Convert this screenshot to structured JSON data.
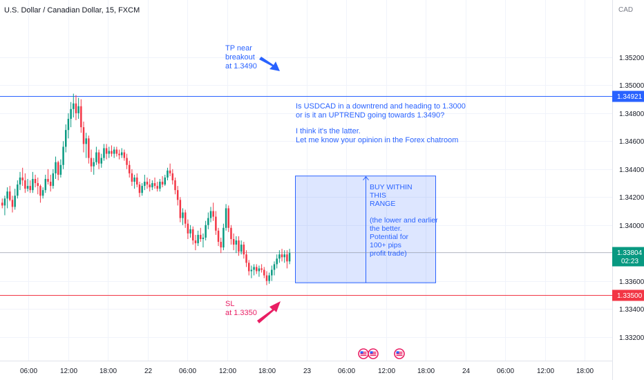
{
  "chart_data": {
    "type": "candlestick",
    "title": "U.S. Dollar / Canadian Dollar, 15, FXCM",
    "currency_label": "CAD",
    "grid": true,
    "y_range": [
      1.3303,
      1.3561
    ],
    "y_ticks": [
      "1.35200",
      "1.35000",
      "1.34800",
      "1.34600",
      "1.34400",
      "1.34200",
      "1.34000",
      "1.33800",
      "1.33600",
      "1.33400",
      "1.33200"
    ],
    "x_ticks": [
      "06:00",
      "12:00",
      "18:00",
      "22",
      "06:00",
      "12:00",
      "18:00",
      "23",
      "06:00",
      "12:00",
      "18:00",
      "24",
      "06:00",
      "12:00",
      "18:00"
    ],
    "price_line": {
      "value": 1.33804,
      "label": "1.33804",
      "countdown": "02:23",
      "color": "#089981"
    },
    "horizontal_lines": [
      {
        "name": "tp-line",
        "value": 1.34921,
        "label": "1.34921",
        "color": "#2962ff"
      },
      {
        "name": "sl-line",
        "value": 1.335,
        "label": "1.33500",
        "color": "#f23645"
      }
    ],
    "range_box": {
      "from": 1.33587,
      "to": 1.34351,
      "color": "#2962ff"
    },
    "annotations": {
      "tp": [
        "TP near",
        "breakout",
        "at 1.3490"
      ],
      "sl": [
        "SL",
        "at 1.3350"
      ],
      "question": [
        "Is USDCAD in a downtrend and heading to 1.3000",
        "or is it an UPTREND going towards 1.3490?",
        "",
        "I think it's the latter.",
        "Let me know your opinion in the Forex chatroom"
      ],
      "box": [
        "BUY WITHIN",
        "THIS",
        "RANGE",
        "",
        "(the lower and earlier",
        "the better.",
        "Potential for",
        "100+ pips",
        "profit trade)"
      ]
    },
    "candles": [
      {
        "o": 1.3416,
        "h": 1.3419,
        "l": 1.3412,
        "c": 1.3414
      },
      {
        "o": 1.3414,
        "h": 1.3421,
        "l": 1.3407,
        "c": 1.3419
      },
      {
        "o": 1.3419,
        "h": 1.3427,
        "l": 1.3412,
        "c": 1.3424
      },
      {
        "o": 1.3424,
        "h": 1.3428,
        "l": 1.3417,
        "c": 1.3418
      },
      {
        "o": 1.3418,
        "h": 1.3421,
        "l": 1.3409,
        "c": 1.3413
      },
      {
        "o": 1.3413,
        "h": 1.3426,
        "l": 1.3411,
        "c": 1.3421
      },
      {
        "o": 1.3421,
        "h": 1.3432,
        "l": 1.3419,
        "c": 1.3429
      },
      {
        "o": 1.3429,
        "h": 1.3438,
        "l": 1.3425,
        "c": 1.3434
      },
      {
        "o": 1.3434,
        "h": 1.3441,
        "l": 1.3428,
        "c": 1.3432
      },
      {
        "o": 1.3432,
        "h": 1.3437,
        "l": 1.3423,
        "c": 1.3426
      },
      {
        "o": 1.3426,
        "h": 1.3433,
        "l": 1.3424,
        "c": 1.3428
      },
      {
        "o": 1.3428,
        "h": 1.3432,
        "l": 1.3423,
        "c": 1.3425
      },
      {
        "o": 1.3425,
        "h": 1.3438,
        "l": 1.3423,
        "c": 1.3433
      },
      {
        "o": 1.3433,
        "h": 1.3436,
        "l": 1.3427,
        "c": 1.343
      },
      {
        "o": 1.343,
        "h": 1.3434,
        "l": 1.3422,
        "c": 1.3428
      },
      {
        "o": 1.3428,
        "h": 1.3429,
        "l": 1.3416,
        "c": 1.3421
      },
      {
        "o": 1.3421,
        "h": 1.3427,
        "l": 1.3419,
        "c": 1.3425
      },
      {
        "o": 1.3425,
        "h": 1.3436,
        "l": 1.3423,
        "c": 1.3433
      },
      {
        "o": 1.3433,
        "h": 1.344,
        "l": 1.3429,
        "c": 1.3431
      },
      {
        "o": 1.3431,
        "h": 1.3436,
        "l": 1.3424,
        "c": 1.3428
      },
      {
        "o": 1.3428,
        "h": 1.344,
        "l": 1.3426,
        "c": 1.3437
      },
      {
        "o": 1.3437,
        "h": 1.3449,
        "l": 1.3433,
        "c": 1.3445
      },
      {
        "o": 1.3445,
        "h": 1.3446,
        "l": 1.3432,
        "c": 1.3436
      },
      {
        "o": 1.3436,
        "h": 1.3447,
        "l": 1.3434,
        "c": 1.3443
      },
      {
        "o": 1.3443,
        "h": 1.346,
        "l": 1.344,
        "c": 1.3456
      },
      {
        "o": 1.3456,
        "h": 1.3472,
        "l": 1.3452,
        "c": 1.3468
      },
      {
        "o": 1.3468,
        "h": 1.348,
        "l": 1.3462,
        "c": 1.3476
      },
      {
        "o": 1.3476,
        "h": 1.3488,
        "l": 1.347,
        "c": 1.3483
      },
      {
        "o": 1.3483,
        "h": 1.3494,
        "l": 1.3477,
        "c": 1.3487
      },
      {
        "o": 1.3487,
        "h": 1.3493,
        "l": 1.3475,
        "c": 1.348
      },
      {
        "o": 1.348,
        "h": 1.3491,
        "l": 1.3476,
        "c": 1.3485
      },
      {
        "o": 1.3485,
        "h": 1.349,
        "l": 1.3466,
        "c": 1.347
      },
      {
        "o": 1.347,
        "h": 1.3474,
        "l": 1.3452,
        "c": 1.3458
      },
      {
        "o": 1.3458,
        "h": 1.3466,
        "l": 1.3448,
        "c": 1.3462
      },
      {
        "o": 1.3462,
        "h": 1.3464,
        "l": 1.3444,
        "c": 1.3448
      },
      {
        "o": 1.3448,
        "h": 1.3454,
        "l": 1.3438,
        "c": 1.3442
      },
      {
        "o": 1.3442,
        "h": 1.3448,
        "l": 1.3436,
        "c": 1.3445
      },
      {
        "o": 1.3445,
        "h": 1.3456,
        "l": 1.3443,
        "c": 1.3452
      },
      {
        "o": 1.3452,
        "h": 1.3454,
        "l": 1.344,
        "c": 1.3444
      },
      {
        "o": 1.3444,
        "h": 1.3451,
        "l": 1.3441,
        "c": 1.3448
      },
      {
        "o": 1.3448,
        "h": 1.3458,
        "l": 1.3446,
        "c": 1.3455
      },
      {
        "o": 1.3455,
        "h": 1.3458,
        "l": 1.3447,
        "c": 1.3451
      },
      {
        "o": 1.3451,
        "h": 1.3456,
        "l": 1.3448,
        "c": 1.3453
      },
      {
        "o": 1.3453,
        "h": 1.3457,
        "l": 1.3449,
        "c": 1.3451
      },
      {
        "o": 1.3451,
        "h": 1.3456,
        "l": 1.3448,
        "c": 1.3454
      },
      {
        "o": 1.3454,
        "h": 1.3456,
        "l": 1.3449,
        "c": 1.3451
      },
      {
        "o": 1.3451,
        "h": 1.3454,
        "l": 1.3447,
        "c": 1.345
      },
      {
        "o": 1.345,
        "h": 1.3455,
        "l": 1.3448,
        "c": 1.3452
      },
      {
        "o": 1.3452,
        "h": 1.3454,
        "l": 1.3446,
        "c": 1.3448
      },
      {
        "o": 1.3448,
        "h": 1.3451,
        "l": 1.344,
        "c": 1.3443
      },
      {
        "o": 1.3443,
        "h": 1.3446,
        "l": 1.3434,
        "c": 1.3437
      },
      {
        "o": 1.3437,
        "h": 1.344,
        "l": 1.3428,
        "c": 1.3431
      },
      {
        "o": 1.3431,
        "h": 1.3436,
        "l": 1.3426,
        "c": 1.3434
      },
      {
        "o": 1.3434,
        "h": 1.3437,
        "l": 1.3427,
        "c": 1.3429
      },
      {
        "o": 1.3429,
        "h": 1.3431,
        "l": 1.342,
        "c": 1.3423
      },
      {
        "o": 1.3423,
        "h": 1.343,
        "l": 1.3421,
        "c": 1.3428
      },
      {
        "o": 1.3428,
        "h": 1.3436,
        "l": 1.3425,
        "c": 1.3431
      },
      {
        "o": 1.3431,
        "h": 1.3434,
        "l": 1.3426,
        "c": 1.3429
      },
      {
        "o": 1.3429,
        "h": 1.3433,
        "l": 1.3424,
        "c": 1.3427
      },
      {
        "o": 1.3427,
        "h": 1.3432,
        "l": 1.3425,
        "c": 1.343
      },
      {
        "o": 1.343,
        "h": 1.3434,
        "l": 1.3426,
        "c": 1.3428
      },
      {
        "o": 1.3428,
        "h": 1.3431,
        "l": 1.3424,
        "c": 1.3426
      },
      {
        "o": 1.3426,
        "h": 1.3433,
        "l": 1.3424,
        "c": 1.3431
      },
      {
        "o": 1.3431,
        "h": 1.3435,
        "l": 1.3427,
        "c": 1.3429
      },
      {
        "o": 1.3429,
        "h": 1.3436,
        "l": 1.3428,
        "c": 1.3434
      },
      {
        "o": 1.3434,
        "h": 1.3441,
        "l": 1.3432,
        "c": 1.3439
      },
      {
        "o": 1.3439,
        "h": 1.3444,
        "l": 1.3435,
        "c": 1.3437
      },
      {
        "o": 1.3437,
        "h": 1.344,
        "l": 1.3429,
        "c": 1.3432
      },
      {
        "o": 1.3432,
        "h": 1.3434,
        "l": 1.3422,
        "c": 1.3425
      },
      {
        "o": 1.3425,
        "h": 1.3428,
        "l": 1.3414,
        "c": 1.3418
      },
      {
        "o": 1.3418,
        "h": 1.342,
        "l": 1.3402,
        "c": 1.3405
      },
      {
        "o": 1.3405,
        "h": 1.3412,
        "l": 1.34,
        "c": 1.3409
      },
      {
        "o": 1.3409,
        "h": 1.3411,
        "l": 1.3398,
        "c": 1.3401
      },
      {
        "o": 1.3401,
        "h": 1.3404,
        "l": 1.339,
        "c": 1.3394
      },
      {
        "o": 1.3394,
        "h": 1.34,
        "l": 1.3391,
        "c": 1.3397
      },
      {
        "o": 1.3397,
        "h": 1.3399,
        "l": 1.3386,
        "c": 1.3389
      },
      {
        "o": 1.3389,
        "h": 1.3393,
        "l": 1.3382,
        "c": 1.3387
      },
      {
        "o": 1.3387,
        "h": 1.3396,
        "l": 1.3385,
        "c": 1.3393
      },
      {
        "o": 1.3393,
        "h": 1.3398,
        "l": 1.3388,
        "c": 1.339
      },
      {
        "o": 1.339,
        "h": 1.3394,
        "l": 1.3384,
        "c": 1.3391
      },
      {
        "o": 1.3391,
        "h": 1.3403,
        "l": 1.3389,
        "c": 1.34
      },
      {
        "o": 1.34,
        "h": 1.3409,
        "l": 1.3397,
        "c": 1.3405
      },
      {
        "o": 1.3405,
        "h": 1.3413,
        "l": 1.3402,
        "c": 1.341
      },
      {
        "o": 1.341,
        "h": 1.3416,
        "l": 1.3403,
        "c": 1.3406
      },
      {
        "o": 1.3406,
        "h": 1.341,
        "l": 1.3393,
        "c": 1.3396
      },
      {
        "o": 1.3396,
        "h": 1.3398,
        "l": 1.3385,
        "c": 1.3388
      },
      {
        "o": 1.3388,
        "h": 1.3391,
        "l": 1.338,
        "c": 1.3384
      },
      {
        "o": 1.3384,
        "h": 1.3401,
        "l": 1.3382,
        "c": 1.3398
      },
      {
        "o": 1.3398,
        "h": 1.3415,
        "l": 1.3396,
        "c": 1.3412
      },
      {
        "o": 1.3412,
        "h": 1.3414,
        "l": 1.3395,
        "c": 1.3398
      },
      {
        "o": 1.3398,
        "h": 1.34,
        "l": 1.3386,
        "c": 1.339
      },
      {
        "o": 1.339,
        "h": 1.3394,
        "l": 1.3382,
        "c": 1.3386
      },
      {
        "o": 1.3386,
        "h": 1.3392,
        "l": 1.338,
        "c": 1.3389
      },
      {
        "o": 1.3389,
        "h": 1.3392,
        "l": 1.3378,
        "c": 1.3381
      },
      {
        "o": 1.3381,
        "h": 1.3389,
        "l": 1.3379,
        "c": 1.3386
      },
      {
        "o": 1.3386,
        "h": 1.3388,
        "l": 1.3376,
        "c": 1.3379
      },
      {
        "o": 1.3379,
        "h": 1.3382,
        "l": 1.337,
        "c": 1.3373
      },
      {
        "o": 1.3373,
        "h": 1.3375,
        "l": 1.3364,
        "c": 1.3367
      },
      {
        "o": 1.3367,
        "h": 1.3371,
        "l": 1.3362,
        "c": 1.3368
      },
      {
        "o": 1.3368,
        "h": 1.3372,
        "l": 1.3364,
        "c": 1.337
      },
      {
        "o": 1.337,
        "h": 1.3372,
        "l": 1.3365,
        "c": 1.3367
      },
      {
        "o": 1.3367,
        "h": 1.3371,
        "l": 1.3363,
        "c": 1.3369
      },
      {
        "o": 1.3369,
        "h": 1.3372,
        "l": 1.3366,
        "c": 1.3368
      },
      {
        "o": 1.3368,
        "h": 1.337,
        "l": 1.3362,
        "c": 1.3364
      },
      {
        "o": 1.3364,
        "h": 1.3367,
        "l": 1.3357,
        "c": 1.336
      },
      {
        "o": 1.336,
        "h": 1.3366,
        "l": 1.3358,
        "c": 1.3364
      },
      {
        "o": 1.3364,
        "h": 1.3371,
        "l": 1.336,
        "c": 1.3368
      },
      {
        "o": 1.3368,
        "h": 1.3374,
        "l": 1.3364,
        "c": 1.3372
      },
      {
        "o": 1.3372,
        "h": 1.3379,
        "l": 1.3369,
        "c": 1.3376
      },
      {
        "o": 1.3376,
        "h": 1.3382,
        "l": 1.3373,
        "c": 1.3379
      },
      {
        "o": 1.3379,
        "h": 1.3383,
        "l": 1.3374,
        "c": 1.3377
      },
      {
        "o": 1.3377,
        "h": 1.3382,
        "l": 1.3373,
        "c": 1.3379
      },
      {
        "o": 1.3379,
        "h": 1.3382,
        "l": 1.3369,
        "c": 1.3374
      },
      {
        "o": 1.3374,
        "h": 1.3383,
        "l": 1.3372,
        "c": 1.338
      }
    ]
  }
}
